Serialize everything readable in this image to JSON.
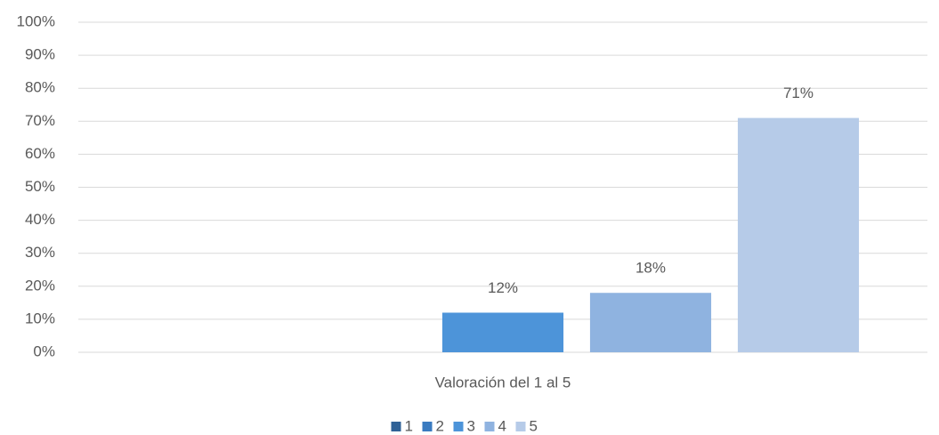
{
  "chart_data": {
    "type": "bar",
    "categories": [
      "Valoración del 1 al 5"
    ],
    "series": [
      {
        "name": "1",
        "color": "#2f6196",
        "values": [
          null
        ],
        "value_labels": [
          null
        ]
      },
      {
        "name": "2",
        "color": "#3a7bc0",
        "values": [
          null
        ],
        "value_labels": [
          null
        ]
      },
      {
        "name": "3",
        "color": "#4d94d9",
        "values": [
          12
        ],
        "value_labels": [
          "12%"
        ]
      },
      {
        "name": "4",
        "color": "#8fb3e0",
        "values": [
          18
        ],
        "value_labels": [
          "18%"
        ]
      },
      {
        "name": "5",
        "color": "#b6cbe8",
        "values": [
          71
        ],
        "value_labels": [
          "71%"
        ]
      }
    ],
    "ylim": [
      0,
      100
    ],
    "yticks": [
      {
        "value": 0,
        "label": "0%"
      },
      {
        "value": 10,
        "label": "10%"
      },
      {
        "value": 20,
        "label": "20%"
      },
      {
        "value": 30,
        "label": "30%"
      },
      {
        "value": 40,
        "label": "40%"
      },
      {
        "value": 50,
        "label": "50%"
      },
      {
        "value": 60,
        "label": "60%"
      },
      {
        "value": 70,
        "label": "70%"
      },
      {
        "value": 80,
        "label": "80%"
      },
      {
        "value": 90,
        "label": "90%"
      },
      {
        "value": 100,
        "label": "100%"
      }
    ],
    "grid": true,
    "legend": "bottom"
  }
}
